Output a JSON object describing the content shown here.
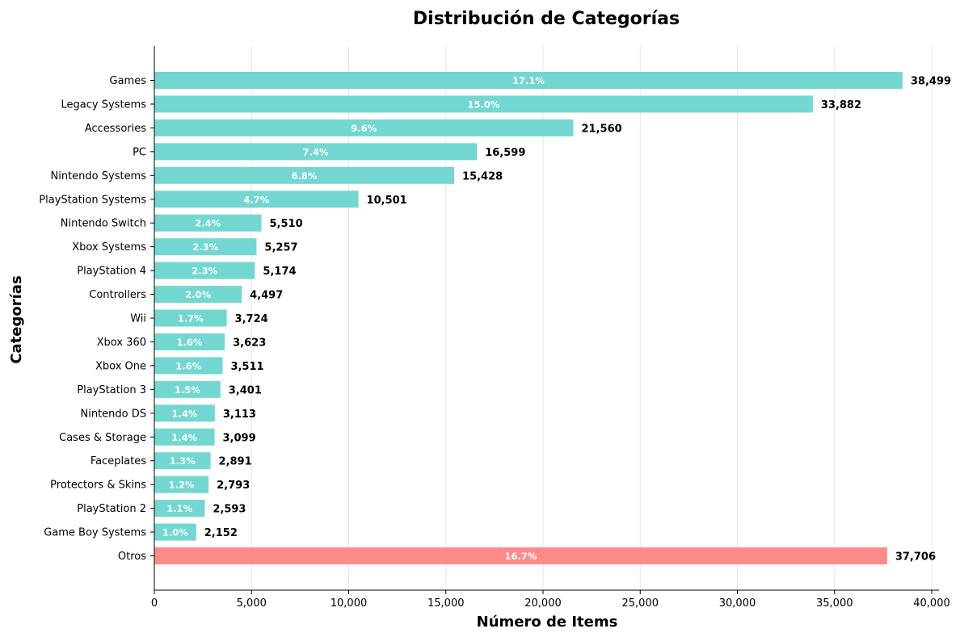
{
  "chart_data": {
    "type": "bar",
    "orientation": "horizontal",
    "title": "Distribución de Categorías",
    "xlabel": "Número de Items",
    "ylabel": "Categorías",
    "xlim": [
      0,
      40000
    ],
    "x_ticks": [
      0,
      5000,
      10000,
      15000,
      20000,
      25000,
      30000,
      35000,
      40000
    ],
    "x_tick_labels": [
      "0",
      "5,000",
      "10,000",
      "15,000",
      "20,000",
      "25,000",
      "30,000",
      "35,000",
      "40,000"
    ],
    "grid": "vertical",
    "categories": [
      "Games",
      "Legacy Systems",
      "Accessories",
      "PC",
      "Nintendo Systems",
      "PlayStation Systems",
      "Nintendo Switch",
      "Xbox Systems",
      "PlayStation 4",
      "Controllers",
      "Wii",
      "Xbox 360",
      "Xbox One",
      "PlayStation 3",
      "Nintendo DS",
      "Cases & Storage",
      "Faceplates",
      "Protectors & Skins",
      "PlayStation 2",
      "Game Boy Systems",
      "Otros"
    ],
    "values": [
      38499,
      33882,
      21560,
      16599,
      15428,
      10501,
      5510,
      5257,
      5174,
      4497,
      3724,
      3623,
      3511,
      3401,
      3113,
      3099,
      2891,
      2793,
      2593,
      2152,
      37706
    ],
    "value_labels": [
      "38,499",
      "33,882",
      "21,560",
      "16,599",
      "15,428",
      "10,501",
      "5,510",
      "5,257",
      "5,174",
      "4,497",
      "3,724",
      "3,623",
      "3,511",
      "3,401",
      "3,113",
      "3,099",
      "2,891",
      "2,793",
      "2,593",
      "2,152",
      "37,706"
    ],
    "percent_labels": [
      "17.1%",
      "15.0%",
      "9.6%",
      "7.4%",
      "6.8%",
      "4.7%",
      "2.4%",
      "2.3%",
      "2.3%",
      "2.0%",
      "1.7%",
      "1.6%",
      "1.6%",
      "1.5%",
      "1.4%",
      "1.4%",
      "1.3%",
      "1.2%",
      "1.1%",
      "1.0%",
      "16.7%"
    ],
    "colors": {
      "bar": "#72d7d0",
      "highlight": "#ff8a8a",
      "highlight_category": "Otros"
    }
  }
}
